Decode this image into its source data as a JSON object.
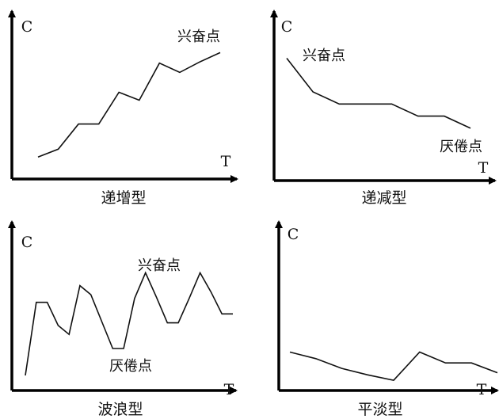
{
  "chart_data": [
    {
      "type": "line",
      "title": "递增型",
      "xlabel": "T",
      "ylabel": "C",
      "series": [
        {
          "x": [
            0,
            1,
            2,
            3,
            4,
            5,
            6,
            7,
            8,
            9
          ],
          "values": [
            1.0,
            1.6,
            3.5,
            3.5,
            5.9,
            5.3,
            8.1,
            7.4,
            8.2,
            8.9
          ]
        }
      ],
      "annotations": [
        {
          "text": "兴奋点",
          "x": 9,
          "y": 8.9
        }
      ]
    },
    {
      "type": "line",
      "title": "递减型",
      "xlabel": "T",
      "ylabel": "C",
      "series": [
        {
          "x": [
            0,
            1,
            2,
            3,
            4,
            5,
            6,
            7
          ],
          "values": [
            8.5,
            6.0,
            5.1,
            5.1,
            5.1,
            4.2,
            4.2,
            3.3
          ]
        }
      ],
      "annotations": [
        {
          "text": "兴奋点",
          "x": 0,
          "y": 8.5
        },
        {
          "text": "厌倦点",
          "x": 7,
          "y": 3.3
        }
      ]
    },
    {
      "type": "line",
      "title": "波浪型",
      "xlabel": "T",
      "ylabel": "C",
      "series": [
        {
          "x": [
            0,
            1,
            2,
            3,
            4,
            5,
            6,
            7,
            8,
            9,
            10,
            11,
            12,
            13,
            14,
            15,
            16,
            17,
            18,
            19
          ],
          "values": [
            0.8,
            6.5,
            6.5,
            4.7,
            4.0,
            7.8,
            7.1,
            5.0,
            2.9,
            2.9,
            6.8,
            8.8,
            6.9,
            4.9,
            4.9,
            6.8,
            8.8,
            7.3,
            5.6,
            5.6
          ]
        }
      ],
      "annotations": [
        {
          "text": "兴奋点",
          "x": 11,
          "y": 8.8
        },
        {
          "text": "厌倦点",
          "x": 8.5,
          "y": 2.9
        }
      ]
    },
    {
      "type": "line",
      "title": "平淡型",
      "xlabel": "T",
      "ylabel": "C",
      "series": [
        {
          "x": [
            0,
            1,
            2,
            3,
            4,
            5,
            6,
            7,
            8
          ],
          "values": [
            3.1,
            2.5,
            1.6,
            1.0,
            0.5,
            3.1,
            2.1,
            2.1,
            1.2
          ]
        }
      ],
      "annotations": []
    }
  ]
}
